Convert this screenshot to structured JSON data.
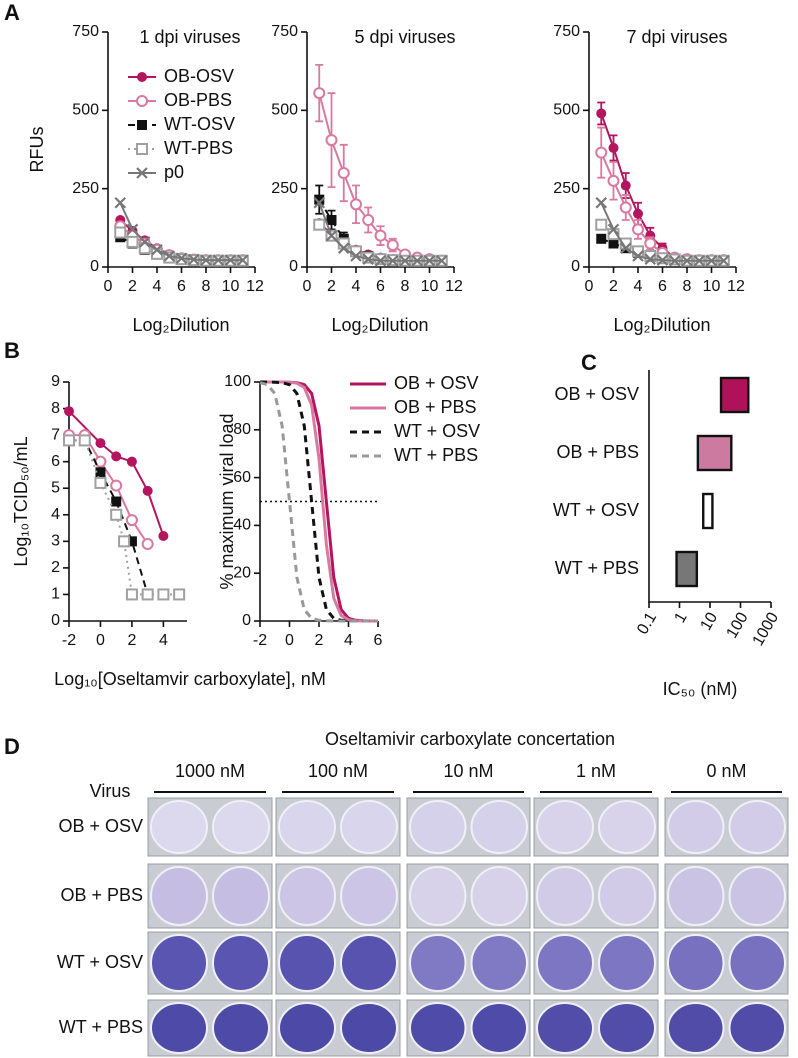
{
  "panel_labels": [
    "A",
    "B",
    "C",
    "D"
  ],
  "chart_data": [
    {
      "type": "line",
      "title": "1 dpi viruses",
      "y_label": "RFUs",
      "x_label": "Log₂Dilution",
      "x": [
        1,
        2,
        3,
        4,
        5,
        6,
        7,
        8,
        9,
        10,
        11
      ],
      "xlim": [
        0,
        12
      ],
      "xticks": [
        0,
        2,
        4,
        6,
        8,
        10,
        12
      ],
      "ylim": [
        0,
        750
      ],
      "yticks": [
        0,
        250,
        500,
        750
      ],
      "legend": "upper left",
      "series": [
        {
          "name": "OB-OSV",
          "color": "#b5155e",
          "marker": "filled-circle",
          "dash": "solid",
          "values": [
            150,
            115,
            85,
            60,
            40,
            30,
            25,
            22,
            22,
            22,
            22
          ]
        },
        {
          "name": "OB-PBS",
          "color": "#d9799f",
          "marker": "open-circle",
          "dash": "solid",
          "values": [
            130,
            100,
            75,
            55,
            38,
            28,
            24,
            22,
            22,
            22,
            22
          ]
        },
        {
          "name": "WT-OSV",
          "color": "#111111",
          "marker": "filled-square",
          "dash": "dashed",
          "values": [
            95,
            75,
            55,
            40,
            30,
            25,
            22,
            20,
            20,
            20,
            20
          ]
        },
        {
          "name": "WT-PBS",
          "color": "#a0a0a0",
          "marker": "open-square",
          "dash": "dotted",
          "values": [
            110,
            80,
            60,
            42,
            30,
            25,
            22,
            20,
            20,
            20,
            20
          ]
        },
        {
          "name": "p0",
          "color": "#777777",
          "marker": "x",
          "dash": "solid",
          "values": [
            205,
            120,
            80,
            55,
            35,
            28,
            24,
            22,
            22,
            22,
            22
          ]
        }
      ]
    },
    {
      "type": "line",
      "title": "5 dpi viruses",
      "x_label": "Log₂Dilution",
      "x": [
        1,
        2,
        3,
        4,
        5,
        6,
        7,
        8,
        9,
        10,
        11
      ],
      "xlim": [
        0,
        12
      ],
      "xticks": [
        0,
        2,
        4,
        6,
        8,
        10,
        12
      ],
      "ylim": [
        0,
        750
      ],
      "yticks": [
        0,
        250,
        500,
        750
      ],
      "series": [
        {
          "color": "#b5155e",
          "marker": "filled-circle",
          "dash": "solid",
          "values": [
            140,
            105,
            75,
            55,
            40,
            30,
            25,
            22,
            20,
            20,
            20
          ]
        },
        {
          "color": "#d9799f",
          "marker": "open-circle",
          "dash": "solid",
          "values": [
            555,
            405,
            300,
            200,
            150,
            100,
            70,
            40,
            30,
            25,
            20
          ],
          "errors": [
            90,
            150,
            90,
            60,
            40,
            30,
            20,
            10,
            5,
            5,
            5
          ]
        },
        {
          "color": "#111111",
          "marker": "filled-square",
          "dash": "dashed",
          "values": [
            215,
            150,
            90,
            50,
            35,
            25,
            20,
            20,
            20,
            20,
            20
          ],
          "errors": [
            45,
            30,
            20,
            10,
            5,
            5,
            5,
            5,
            5,
            5,
            5
          ]
        },
        {
          "color": "#a0a0a0",
          "marker": "open-square",
          "dash": "dotted",
          "values": [
            135,
            100,
            75,
            50,
            30,
            25,
            22,
            20,
            20,
            20,
            20
          ]
        },
        {
          "color": "#777777",
          "marker": "x",
          "dash": "solid",
          "values": [
            205,
            100,
            60,
            35,
            25,
            20,
            20,
            20,
            20,
            20,
            20
          ]
        }
      ]
    },
    {
      "type": "line",
      "title": "7 dpi viruses",
      "x_label": "Log₂Dilution",
      "x": [
        1,
        2,
        3,
        4,
        5,
        6,
        7,
        8,
        9,
        10,
        11
      ],
      "xlim": [
        0,
        12
      ],
      "xticks": [
        0,
        2,
        4,
        6,
        8,
        10,
        12
      ],
      "ylim": [
        0,
        750
      ],
      "yticks": [
        0,
        250,
        500,
        750
      ],
      "series": [
        {
          "color": "#b5155e",
          "marker": "filled-circle",
          "dash": "solid",
          "values": [
            490,
            380,
            260,
            170,
            100,
            60,
            30,
            25,
            22,
            22,
            22
          ],
          "errors": [
            35,
            40,
            40,
            35,
            25,
            15,
            10,
            5,
            5,
            5,
            5
          ]
        },
        {
          "color": "#d9799f",
          "marker": "open-circle",
          "dash": "solid",
          "values": [
            365,
            275,
            190,
            120,
            75,
            45,
            30,
            25,
            22,
            22,
            22
          ],
          "errors": [
            80,
            60,
            40,
            30,
            20,
            10,
            5,
            5,
            5,
            5,
            5
          ]
        },
        {
          "color": "#111111",
          "marker": "filled-square",
          "dash": "dashed",
          "values": [
            90,
            75,
            60,
            45,
            35,
            28,
            24,
            20,
            20,
            20,
            20
          ]
        },
        {
          "color": "#a0a0a0",
          "marker": "open-square",
          "dash": "dotted",
          "values": [
            135,
            105,
            75,
            50,
            35,
            28,
            24,
            20,
            20,
            20,
            20
          ]
        },
        {
          "color": "#777777",
          "marker": "x",
          "dash": "solid",
          "values": [
            205,
            120,
            60,
            35,
            25,
            22,
            20,
            20,
            20,
            20,
            20
          ]
        }
      ]
    },
    {
      "type": "line",
      "y_label": "Log₁₀TCID₅₀/mL",
      "x_label": "Log₁₀[Oseltamvir carboxylate], nM",
      "xlim": [
        -2,
        5.5
      ],
      "xticks": [
        -2,
        0,
        2,
        4
      ],
      "ylim": [
        0,
        9
      ],
      "yticks": [
        0,
        1,
        2,
        3,
        4,
        5,
        6,
        7,
        8,
        9
      ],
      "series": [
        {
          "color": "#b5155e",
          "marker": "filled-circle",
          "dash": "solid",
          "x": [
            -2,
            0,
            1,
            2,
            3,
            4
          ],
          "values": [
            7.9,
            6.7,
            6.2,
            6.0,
            4.9,
            3.2
          ]
        },
        {
          "color": "#d9799f",
          "marker": "open-circle",
          "dash": "solid",
          "x": [
            -2,
            -1,
            0,
            1,
            2,
            3
          ],
          "values": [
            7.0,
            7.0,
            6.0,
            5.1,
            3.8,
            2.9
          ]
        },
        {
          "color": "#111111",
          "marker": "filled-square",
          "dash": "dashed",
          "x": [
            -2,
            -1,
            0,
            1,
            2,
            3
          ],
          "values": [
            6.8,
            6.8,
            5.6,
            4.5,
            3.0,
            1.0
          ]
        },
        {
          "color": "#a0a0a0",
          "marker": "open-square",
          "dash": "dotted",
          "x": [
            -2,
            -1,
            0,
            1,
            1.5,
            2,
            3,
            4,
            5
          ],
          "values": [
            6.8,
            6.8,
            5.2,
            4.0,
            3.0,
            1,
            1,
            1,
            1
          ]
        }
      ]
    },
    {
      "type": "line",
      "y_label": "% maximum viral load",
      "legend": "right",
      "x": [
        -2,
        -1.5,
        -1,
        -0.5,
        0,
        0.5,
        1,
        1.5,
        2,
        2.5,
        3,
        3.5,
        4,
        4.5,
        5,
        5.5,
        6
      ],
      "xlim": [
        -2,
        6
      ],
      "xticks": [
        -2,
        0,
        2,
        4,
        6
      ],
      "ylim": [
        0,
        100
      ],
      "yticks": [
        0,
        20,
        40,
        60,
        80,
        100
      ],
      "reference_line": 50,
      "series": [
        {
          "name": "OB + OSV",
          "color": "#b5155e",
          "marker": "none",
          "dash": "solid",
          "values": [
            100,
            100,
            100,
            100,
            99.9,
            99.7,
            98.9,
            95.2,
            81.7,
            50,
            18.3,
            4.8,
            1.1,
            0.3,
            0.1,
            0,
            0
          ]
        },
        {
          "name": "OB + PBS",
          "color": "#d9799f",
          "marker": "none",
          "dash": "solid",
          "values": [
            100,
            100,
            100,
            100,
            99.9,
            99.5,
            97.7,
            90.4,
            67.9,
            32.1,
            9.6,
            2.3,
            0.5,
            0.1,
            0,
            0,
            0
          ]
        },
        {
          "name": "WT + OSV",
          "color": "#111111",
          "marker": "none",
          "dash": "dashed",
          "values": [
            100,
            100,
            99.9,
            99.7,
            98.9,
            95.2,
            81.7,
            50,
            18.3,
            4.8,
            1.1,
            0.3,
            0.1,
            0,
            0,
            0,
            0
          ]
        },
        {
          "name": "WT + PBS",
          "color": "#999999",
          "marker": "none",
          "dash": "dashed",
          "values": [
            99.7,
            98.9,
            95.2,
            81.7,
            50,
            18.3,
            4.8,
            1.1,
            0.3,
            0.1,
            0,
            0,
            0,
            0,
            0,
            0,
            0
          ]
        }
      ]
    },
    {
      "type": "floating_bar",
      "x_label": "IC₅₀ (nM)",
      "xscale": "log",
      "categories": [
        "OB + OSV",
        "OB + PBS",
        "WT + OSV",
        "WT + PBS"
      ],
      "low": [
        23,
        4,
        6,
        0.8
      ],
      "high": [
        180,
        50,
        12,
        3.7
      ],
      "colors": [
        "#b0125a",
        "#cc7aa0",
        "#ffffff",
        "#777777"
      ],
      "xlim": [
        0.1,
        1000
      ],
      "xticks": [
        0.1,
        1,
        10,
        100,
        1000
      ]
    }
  ],
  "panel_d": {
    "title": "Oseltamivir carboxylate concertation",
    "row_header": "Virus",
    "columns": [
      "1000 nM",
      "100 nM",
      "10 nM",
      "1 nM",
      "0 nM"
    ],
    "rows": [
      "OB + OSV",
      "OB + PBS",
      "WT + OSV",
      "WT + PBS"
    ]
  }
}
